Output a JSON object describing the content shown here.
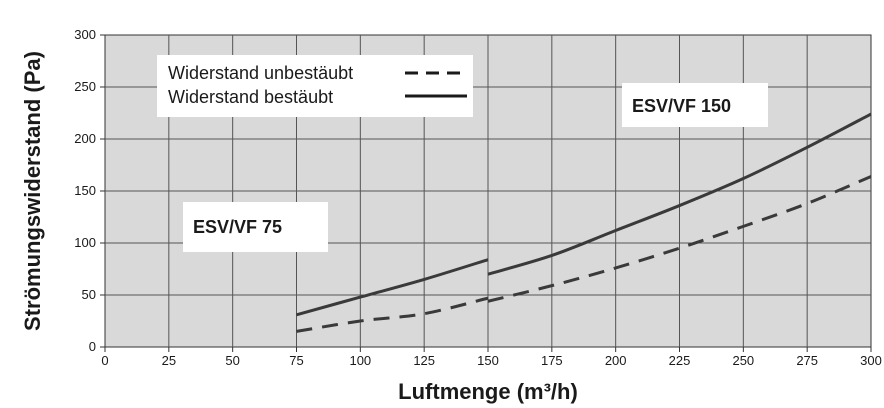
{
  "chart_data": {
    "type": "line",
    "xlabel": "Luftmenge (m³/h)",
    "ylabel": "Strömungswiderstand (Pa)",
    "xlim": [
      0,
      300
    ],
    "ylim": [
      0,
      300
    ],
    "x_ticks": [
      "0",
      "25",
      "50",
      "75",
      "100",
      "125",
      "150",
      "175",
      "200",
      "225",
      "250",
      "275",
      "300"
    ],
    "y_ticks": [
      "0",
      "50",
      "100",
      "150",
      "200",
      "250",
      "300"
    ],
    "grid": true,
    "legend_position": "top-left",
    "legend": [
      {
        "label": "Widerstand unbestäubt",
        "style": "dashed"
      },
      {
        "label": "Widerstand bestäubt",
        "style": "solid"
      }
    ],
    "annotations": [
      {
        "text": "ESV/VF 75"
      },
      {
        "text": "ESV/VF 150"
      }
    ],
    "series": [
      {
        "group": "ESV/VF 75",
        "style": "solid",
        "x": [
          75,
          100,
          125,
          150
        ],
        "y": [
          31,
          48,
          65,
          84
        ]
      },
      {
        "group": "ESV/VF 75",
        "style": "dashed",
        "x": [
          75,
          100,
          125,
          150
        ],
        "y": [
          15,
          25,
          32,
          47
        ]
      },
      {
        "group": "ESV/VF 150",
        "style": "solid",
        "x": [
          150,
          175,
          200,
          225,
          250,
          275,
          300
        ],
        "y": [
          70,
          88,
          112,
          136,
          162,
          192,
          224
        ]
      },
      {
        "group": "ESV/VF 150",
        "style": "dashed",
        "x": [
          150,
          175,
          200,
          225,
          250,
          275,
          300
        ],
        "y": [
          44,
          59,
          76,
          95,
          116,
          138,
          164
        ]
      }
    ],
    "colors": {
      "plot_bg": "#d9d9d9",
      "grid": "#555555",
      "line": "#3a3a3a",
      "text": "#1a1a1a"
    }
  }
}
